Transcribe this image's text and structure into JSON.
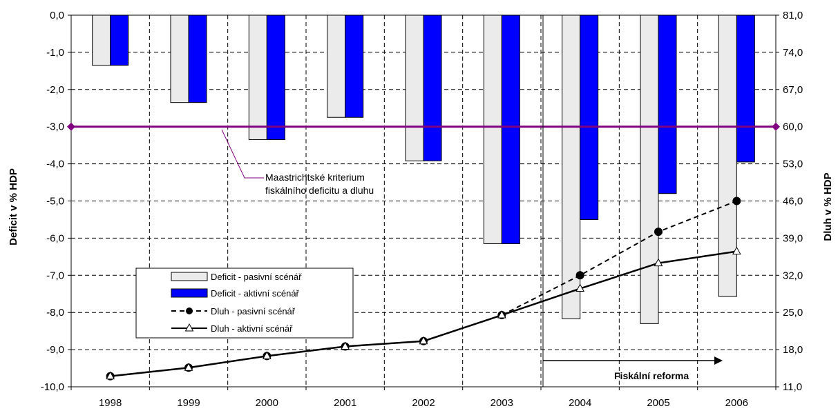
{
  "chart_data": {
    "type": "bar",
    "categories": [
      "1998",
      "1999",
      "2000",
      "2001",
      "2002",
      "2003",
      "2004",
      "2005",
      "2006"
    ],
    "ylabel": "Deficit v % HDP",
    "y2label": "Dluh v % HDP",
    "ylim": [
      -10.0,
      0.0
    ],
    "y2lim": [
      11.0,
      81.0
    ],
    "y_ticks": [
      "0,0",
      "-1,0",
      "-2,0",
      "-3,0",
      "-4,0",
      "-5,0",
      "-6,0",
      "-7,0",
      "-8,0",
      "-9,0",
      "-10,0"
    ],
    "y2_ticks": [
      "81,0",
      "74,0",
      "67,0",
      "60,0",
      "53,0",
      "46,0",
      "39,0",
      "32,0",
      "25,0",
      "18,0",
      "11,0"
    ],
    "grid": true,
    "legend_position": "lower-left",
    "series": [
      {
        "name": "Deficit - pasivní scénář",
        "type": "bar",
        "axis": "left",
        "color": "#ebebeb",
        "values": [
          -1.35,
          -2.35,
          -3.35,
          -2.75,
          -3.92,
          -6.15,
          -8.17,
          -8.3,
          -7.57
        ]
      },
      {
        "name": "Deficit - aktivní scénář",
        "type": "bar",
        "axis": "left",
        "color": "#0000ff",
        "values": [
          -1.35,
          -2.35,
          -3.35,
          -2.75,
          -3.92,
          -6.15,
          -5.5,
          -4.8,
          -3.95
        ]
      },
      {
        "name": "Dluh - pasivní scénář",
        "type": "line",
        "axis": "right",
        "style": "dashed",
        "marker": "circle",
        "color": "#000000",
        "values": [
          13.0,
          14.6,
          16.8,
          18.6,
          19.6,
          24.5,
          32.0,
          40.2,
          46.0
        ]
      },
      {
        "name": "Dluh - aktivní scénář",
        "type": "line",
        "axis": "right",
        "style": "solid",
        "marker": "triangle",
        "color": "#000000",
        "values": [
          13.0,
          14.6,
          16.8,
          18.6,
          19.6,
          24.5,
          29.5,
          34.3,
          36.5
        ]
      }
    ],
    "reference_line": {
      "value": -3.0,
      "color": "#800080"
    },
    "annotations": {
      "criterion": [
        "Maastrichtské kriterium",
        "fiskálního deficitu a dluhu"
      ],
      "reform": "Fiskální reforma"
    }
  }
}
